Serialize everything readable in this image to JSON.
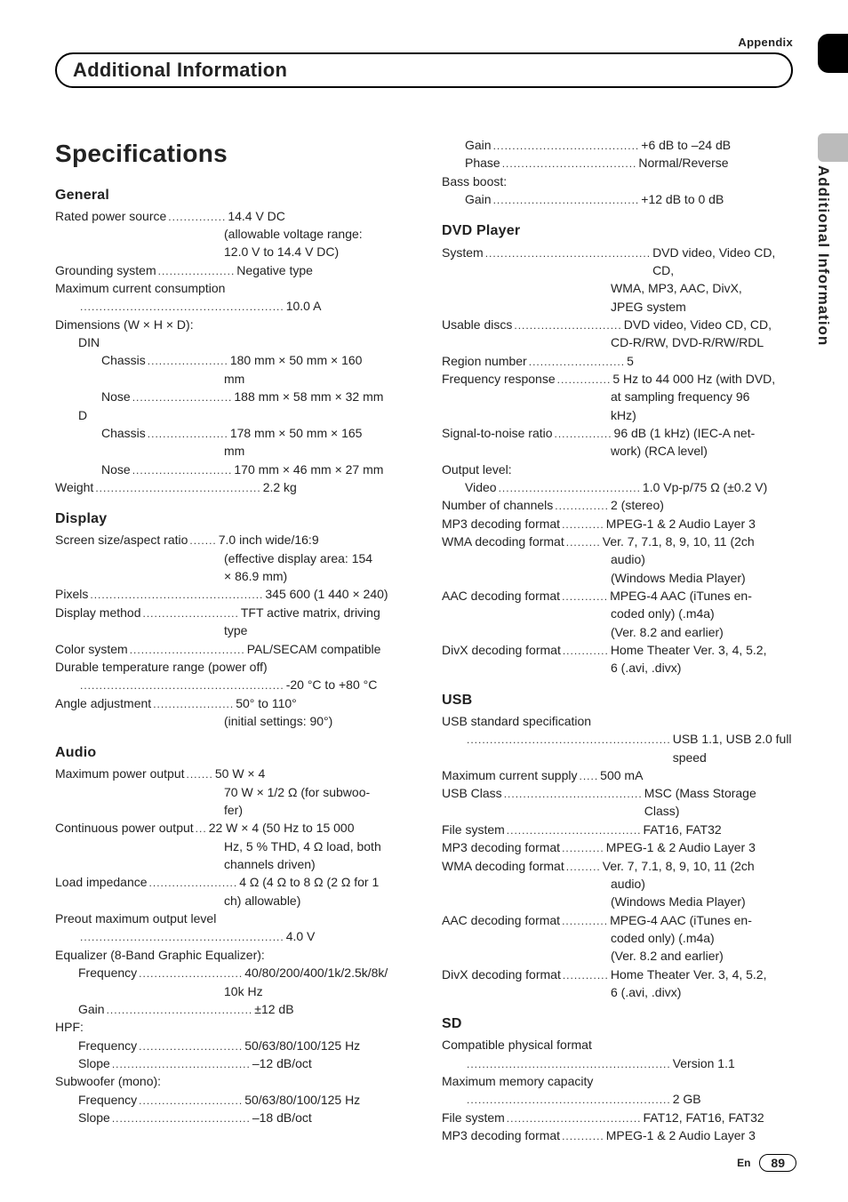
{
  "header": {
    "appendix": "Appendix",
    "bar_title": "Additional Information",
    "side_label": "Additional Information"
  },
  "page_title": "Specifications",
  "footer": {
    "lang": "En",
    "page": "89"
  },
  "sections": {
    "general": {
      "heading": "General",
      "rated_power_label": "Rated power source",
      "rated_power_value": "14.4 V DC",
      "rated_power_note1": "(allowable voltage range:",
      "rated_power_note2": "12.0 V to 14.4 V DC)",
      "grounding_label": "Grounding system",
      "grounding_value": "Negative type",
      "max_current_label": "Maximum current consumption",
      "max_current_value": "10.0 A",
      "dimensions_label": "Dimensions (W × H × D):",
      "din_label": "DIN",
      "din_chassis_label": "Chassis",
      "din_chassis_value": "180 mm × 50 mm × 160",
      "din_chassis_value2": "mm",
      "din_nose_label": "Nose",
      "din_nose_value": "188 mm × 58 mm × 32 mm",
      "d_label": "D",
      "d_chassis_label": "Chassis",
      "d_chassis_value": "178 mm × 50 mm × 165",
      "d_chassis_value2": "mm",
      "d_nose_label": "Nose",
      "d_nose_value": "170 mm × 46 mm × 27 mm",
      "weight_label": "Weight",
      "weight_value": "2.2 kg"
    },
    "display": {
      "heading": "Display",
      "screen_label": "Screen size/aspect ratio",
      "screen_value": "7.0 inch wide/16:9",
      "screen_note1": "(effective display area: 154",
      "screen_note2": "× 86.9 mm)",
      "pixels_label": "Pixels",
      "pixels_value": "345 600 (1 440 × 240)",
      "method_label": "Display method",
      "method_value": "TFT active matrix, driving",
      "method_value2": "type",
      "color_label": "Color system",
      "color_value": "PAL/SECAM compatible",
      "temp_label": "Durable temperature range (power off)",
      "temp_value": "-20 °C to +80 °C",
      "angle_label": "Angle adjustment",
      "angle_value": "50° to 110°",
      "angle_note": "(initial settings: 90°)"
    },
    "audio": {
      "heading": "Audio",
      "maxpow_label": "Maximum power output",
      "maxpow_value": "50 W × 4",
      "maxpow_note1": "70 W × 1/2 Ω (for subwoo-",
      "maxpow_note2": "fer)",
      "cont_label": "Continuous power output",
      "cont_value": "22 W × 4 (50 Hz to 15 000",
      "cont_note1": "Hz, 5 % THD, 4 Ω load, both",
      "cont_note2": "channels driven)",
      "load_label": "Load impedance",
      "load_value": "4 Ω (4 Ω to 8 Ω (2 Ω for 1",
      "load_note": "ch) allowable)",
      "preout_label": "Preout maximum output level",
      "preout_value": "4.0 V",
      "eq_label": "Equalizer (8-Band Graphic Equalizer):",
      "eq_freq_label": "Frequency",
      "eq_freq_value": "40/80/200/400/1k/2.5k/8k/",
      "eq_freq_value2": "10k Hz",
      "eq_gain_label": "Gain",
      "eq_gain_value": "±12 dB",
      "hpf_label": "HPF:",
      "hpf_freq_label": "Frequency",
      "hpf_freq_value": "50/63/80/100/125 Hz",
      "hpf_slope_label": "Slope",
      "hpf_slope_value": "–12 dB/oct",
      "sub_label": "Subwoofer (mono):",
      "sub_freq_label": "Frequency",
      "sub_freq_value": "50/63/80/100/125 Hz",
      "sub_slope_label": "Slope",
      "sub_slope_value": "–18 dB/oct",
      "sub_gain_label": "Gain",
      "sub_gain_value": "+6 dB to –24 dB",
      "sub_phase_label": "Phase",
      "sub_phase_value": "Normal/Reverse",
      "bass_label": "Bass boost:",
      "bass_gain_label": "Gain",
      "bass_gain_value": "+12 dB to 0 dB"
    },
    "dvd": {
      "heading": "DVD Player",
      "system_label": "System",
      "system_value": "DVD video, Video CD, CD,",
      "system_value2": "WMA, MP3, AAC, DivX,",
      "system_value3": "JPEG system",
      "discs_label": "Usable discs",
      "discs_value": "DVD video, Video CD, CD,",
      "discs_value2": "CD-R/RW, DVD-R/RW/RDL",
      "region_label": "Region number",
      "region_value": "5",
      "freq_label": "Frequency response",
      "freq_value": "5 Hz to 44 000 Hz (with DVD,",
      "freq_value2": "at sampling frequency 96",
      "freq_value3": "kHz)",
      "sn_label": "Signal-to-noise ratio",
      "sn_value": "96 dB (1 kHz) (IEC-A net-",
      "sn_value2": "work) (RCA level)",
      "out_label": "Output level:",
      "video_label": "Video",
      "video_value": "1.0 Vp-p/75 Ω (±0.2 V)",
      "ch_label": "Number of channels",
      "ch_value": "2 (stereo)",
      "mp3_label": "MP3 decoding format",
      "mp3_value": "MPEG-1 & 2 Audio Layer 3",
      "wma_label": "WMA decoding format",
      "wma_value": "Ver. 7, 7.1, 8, 9, 10, 11 (2ch",
      "wma_value2": "audio)",
      "wma_value3": "(Windows Media Player)",
      "aac_label": "AAC decoding format",
      "aac_value": "MPEG-4 AAC (iTunes en-",
      "aac_value2": "coded only) (.m4a)",
      "aac_value3": "(Ver. 8.2 and earlier)",
      "divx_label": "DivX decoding format",
      "divx_value": "Home Theater Ver. 3, 4, 5.2,",
      "divx_value2": "6 (.avi, .divx)"
    },
    "usb": {
      "heading": "USB",
      "std_label": "USB standard specification",
      "std_value": "USB 1.1, USB 2.0 full speed",
      "maxcur_label": "Maximum current supply",
      "maxcur_value": "500 mA",
      "class_label": "USB Class",
      "class_value": "MSC (Mass Storage Class)",
      "fs_label": "File system",
      "fs_value": "FAT16, FAT32",
      "mp3_label": "MP3 decoding format",
      "mp3_value": "MPEG-1 & 2 Audio Layer 3",
      "wma_label": "WMA decoding format",
      "wma_value": "Ver. 7, 7.1, 8, 9, 10, 11 (2ch",
      "wma_value2": "audio)",
      "wma_value3": "(Windows Media Player)",
      "aac_label": "AAC decoding format",
      "aac_value": "MPEG-4 AAC (iTunes en-",
      "aac_value2": "coded only) (.m4a)",
      "aac_value3": "(Ver. 8.2 and earlier)",
      "divx_label": "DivX decoding format",
      "divx_value": "Home Theater Ver. 3, 4, 5.2,",
      "divx_value2": "6 (.avi, .divx)"
    },
    "sd": {
      "heading": "SD",
      "phys_label": "Compatible physical format",
      "phys_value": "Version 1.1",
      "mem_label": "Maximum memory capacity",
      "mem_value": "2 GB",
      "fs_label": "File system",
      "fs_value": "FAT12, FAT16, FAT32",
      "mp3_label": "MP3 decoding format",
      "mp3_value": "MPEG-1 & 2 Audio Layer 3"
    }
  }
}
